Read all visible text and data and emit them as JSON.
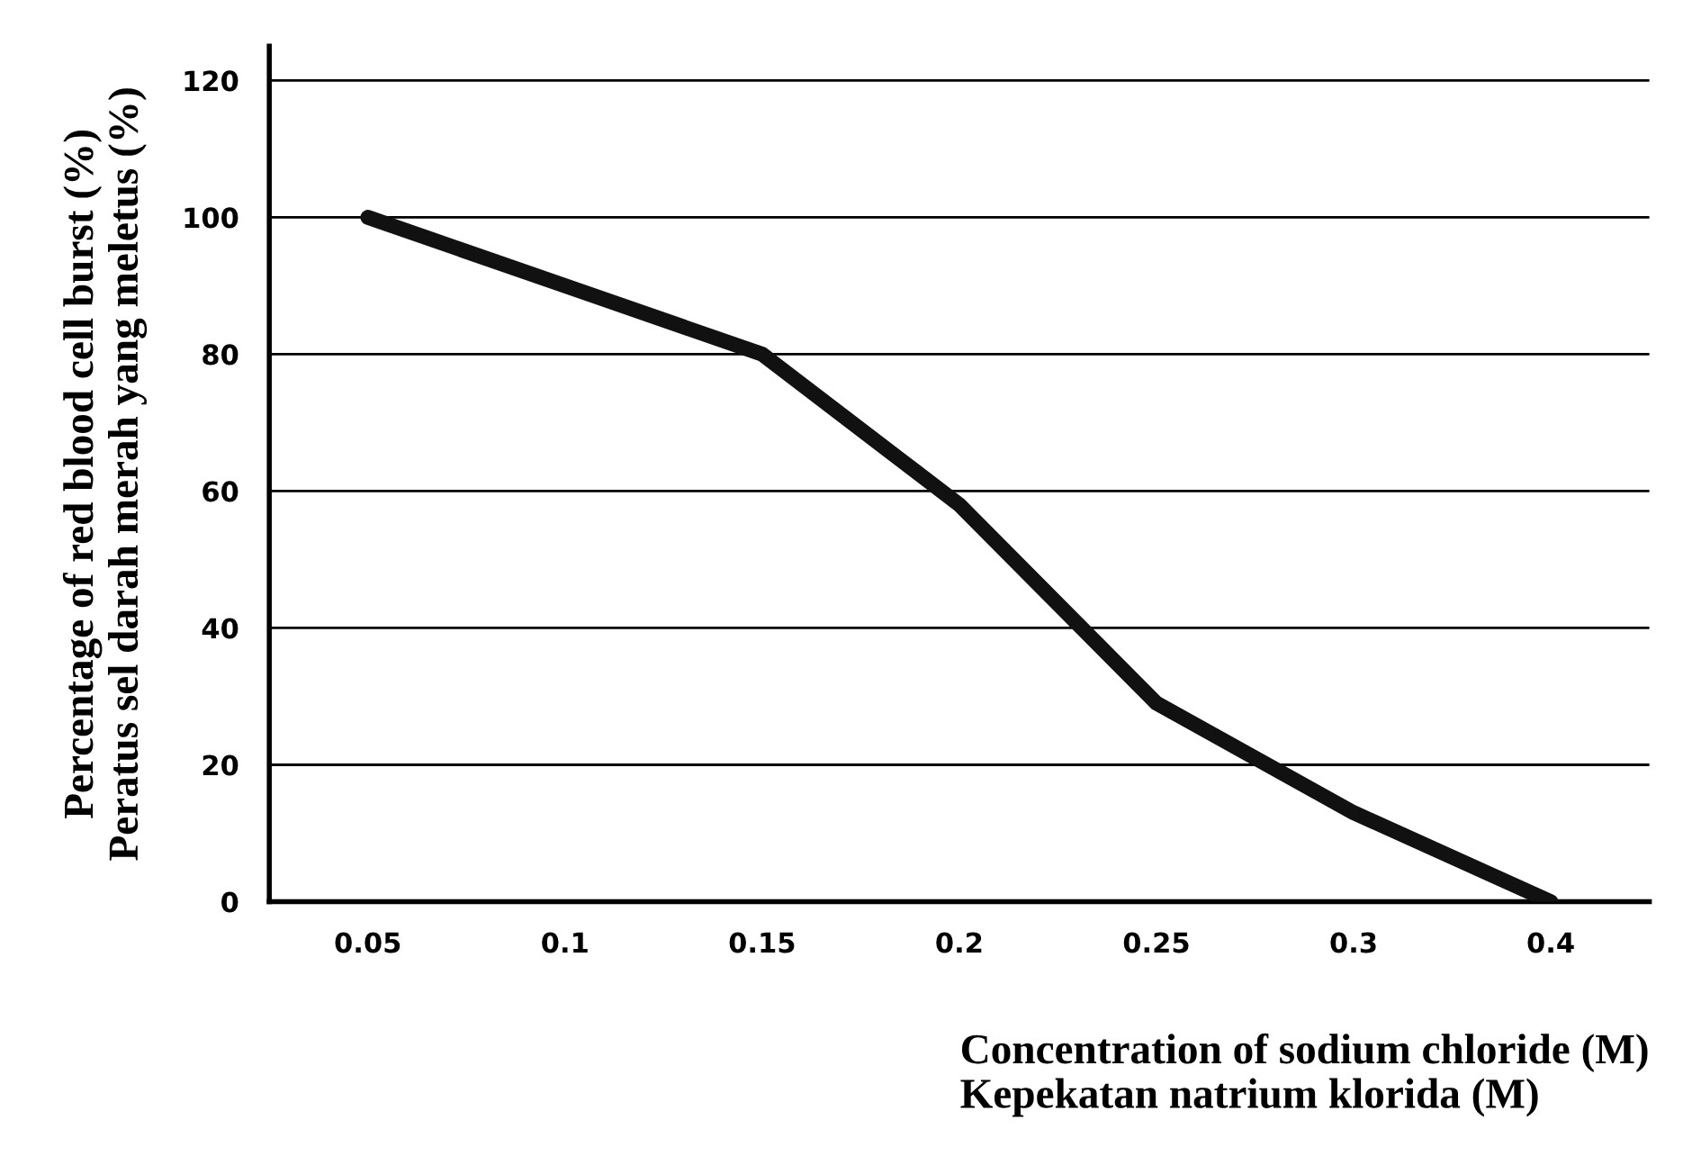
{
  "chart_data": {
    "type": "line",
    "categories": [
      "0.05",
      "0.1",
      "0.15",
      "0.2",
      "0.25",
      "0.3",
      "0.4"
    ],
    "series": [
      {
        "color": "#111111",
        "values": [
          100,
          90,
          80,
          58,
          29,
          13,
          0
        ]
      }
    ],
    "xlabel": "Concentration of sodium chloride (M)\nKepekatan natrium klorida (M)",
    "ylabel": "Percentage of red blood cell burst (%)\nPeratus sel darah merah yang meletus (%)",
    "ylim": [
      0,
      125
    ],
    "yticks": [
      0,
      20,
      40,
      60,
      80,
      100,
      120
    ],
    "grid": "y",
    "marker": "none",
    "line_style": "solid"
  }
}
